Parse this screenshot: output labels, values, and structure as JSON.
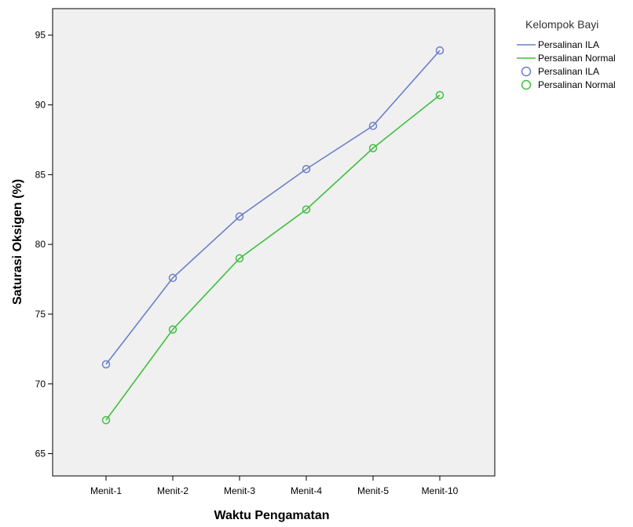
{
  "chart_data": {
    "type": "line",
    "title": "",
    "xlabel": "Waktu Pengamatan",
    "ylabel": "Saturasi Oksigen (%)",
    "categories": [
      "Menit-1",
      "Menit-2",
      "Menit-3",
      "Menit-4",
      "Menit-5",
      "Menit-10"
    ],
    "yticks": [
      65,
      70,
      75,
      80,
      85,
      90,
      95
    ],
    "ylim": [
      63.4,
      96.9
    ],
    "grid": false,
    "legend": {
      "title": "Kelompok Bayi",
      "placement": "right",
      "entries": [
        {
          "label": "Persalinan ILA",
          "kind": "line"
        },
        {
          "label": "Persalinan Normal",
          "kind": "line"
        },
        {
          "label": "Persalinan ILA",
          "kind": "marker"
        },
        {
          "label": "Persalinan Normal",
          "kind": "marker"
        }
      ]
    },
    "series": [
      {
        "name": "Persalinan ILA",
        "color": "#6c7fc9",
        "values": [
          71.4,
          77.6,
          82.0,
          85.4,
          88.5,
          93.9
        ]
      },
      {
        "name": "Persalinan Normal",
        "color": "#3fbf3f",
        "values": [
          67.4,
          73.9,
          79.0,
          82.5,
          86.9,
          90.7
        ]
      }
    ],
    "plot_background": "#f0f0f0",
    "marker": "open-circle"
  }
}
